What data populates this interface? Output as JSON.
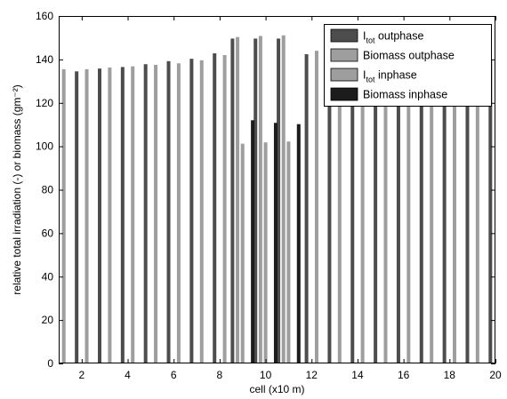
{
  "chart_data": {
    "type": "bar",
    "xlabel": "cell (x10 m)",
    "ylabel": "relative total irradiation (-) or biomass (gm⁻²)",
    "xlim": [
      1,
      20
    ],
    "ylim": [
      0,
      160
    ],
    "xticks": [
      2,
      4,
      6,
      8,
      10,
      12,
      14,
      16,
      18,
      20
    ],
    "yticks": [
      0,
      20,
      40,
      60,
      80,
      100,
      120,
      140,
      160
    ],
    "legend_position": "top-right",
    "grid": false,
    "x": [
      1,
      2,
      3,
      4,
      5,
      6,
      7,
      8,
      9,
      10,
      11,
      12,
      13,
      14,
      15,
      16,
      17,
      18,
      19,
      20
    ],
    "series": [
      {
        "name": "I_tot outphase",
        "legend_main": "I",
        "legend_sub": "tot",
        "legend_rest": " outphase",
        "color": "#4d4d4d",
        "values": [
          null,
          134.5,
          135.8,
          136.5,
          137.8,
          139.2,
          140.3,
          142.8,
          149.6,
          149.6,
          149.6,
          142.4,
          140,
          140,
          140,
          140,
          140,
          140,
          140,
          140
        ]
      },
      {
        "name": "Biomass outphase",
        "legend_main": "Biomass outphase",
        "legend_sub": "",
        "legend_rest": "",
        "color": "#9e9e9e",
        "values": [
          135.5,
          135.5,
          136.3,
          136.8,
          137.5,
          138.2,
          139.6,
          142,
          150.3,
          150.8,
          151.1,
          144,
          140,
          140,
          140,
          140,
          140,
          140,
          140,
          null
        ]
      },
      {
        "name": "I_tot inphase",
        "legend_main": "I",
        "legend_sub": "tot",
        "legend_rest": " inphase",
        "color": "#9e9e9e",
        "values": [
          null,
          null,
          null,
          null,
          null,
          null,
          null,
          null,
          101.2,
          101.8,
          102.2,
          null,
          null,
          null,
          null,
          null,
          null,
          null,
          null,
          null
        ]
      },
      {
        "name": "Biomass inphase",
        "legend_main": "Biomass inphase",
        "legend_sub": "",
        "legend_rest": "",
        "color": "#1c1c1c",
        "values": [
          null,
          null,
          null,
          null,
          null,
          null,
          null,
          null,
          112,
          110.8,
          110.2,
          null,
          null,
          null,
          null,
          null,
          null,
          null,
          null,
          null
        ]
      }
    ]
  }
}
